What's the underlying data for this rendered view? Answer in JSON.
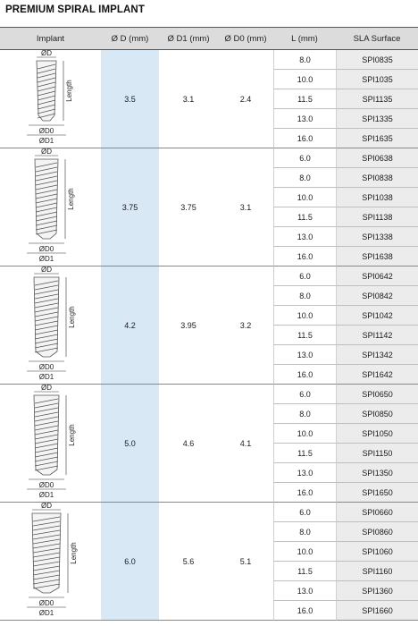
{
  "title": "PREMIUM SPIRAL IMPLANT",
  "headers": [
    "Implant",
    "Ø D (mm)",
    "Ø D1 (mm)",
    "Ø D0 (mm)",
    "L (mm)",
    "SLA Surface"
  ],
  "diagram_labels": {
    "d": "ØD",
    "d0": "ØD0",
    "d1": "ØD1",
    "length": "Length"
  },
  "groups": [
    {
      "d": "3.5",
      "d1": "3.1",
      "d0": "2.4",
      "rows": [
        {
          "l": "8.0",
          "code": "SPI0835"
        },
        {
          "l": "10.0",
          "code": "SPI1035"
        },
        {
          "l": "11.5",
          "code": "SPI1135"
        },
        {
          "l": "13.0",
          "code": "SPI1335"
        },
        {
          "l": "16.0",
          "code": "SPI1635"
        }
      ]
    },
    {
      "d": "3.75",
      "d1": "3.75",
      "d0": "3.1",
      "rows": [
        {
          "l": "6.0",
          "code": "SPI0638"
        },
        {
          "l": "8.0",
          "code": "SPI0838"
        },
        {
          "l": "10.0",
          "code": "SPI1038"
        },
        {
          "l": "11.5",
          "code": "SPI1138"
        },
        {
          "l": "13.0",
          "code": "SPI1338"
        },
        {
          "l": "16.0",
          "code": "SPI1638"
        }
      ]
    },
    {
      "d": "4.2",
      "d1": "3.95",
      "d0": "3.2",
      "rows": [
        {
          "l": "6.0",
          "code": "SPI0642"
        },
        {
          "l": "8.0",
          "code": "SPI0842"
        },
        {
          "l": "10.0",
          "code": "SPI1042"
        },
        {
          "l": "11.5",
          "code": "SPI1142"
        },
        {
          "l": "13.0",
          "code": "SPI1342"
        },
        {
          "l": "16.0",
          "code": "SPI1642"
        }
      ]
    },
    {
      "d": "5.0",
      "d1": "4.6",
      "d0": "4.1",
      "rows": [
        {
          "l": "6.0",
          "code": "SPI0650"
        },
        {
          "l": "8.0",
          "code": "SPI0850"
        },
        {
          "l": "10.0",
          "code": "SPI1050"
        },
        {
          "l": "11.5",
          "code": "SPI1150"
        },
        {
          "l": "13.0",
          "code": "SPI1350"
        },
        {
          "l": "16.0",
          "code": "SPI1650"
        }
      ]
    },
    {
      "d": "6.0",
      "d1": "5.6",
      "d0": "5.1",
      "rows": [
        {
          "l": "6.0",
          "code": "SPI0660"
        },
        {
          "l": "8.0",
          "code": "SPI0860"
        },
        {
          "l": "10.0",
          "code": "SPI1060"
        },
        {
          "l": "11.5",
          "code": "SPI1160"
        },
        {
          "l": "13.0",
          "code": "SPI1360"
        },
        {
          "l": "16.0",
          "code": "SPI1660"
        }
      ]
    }
  ]
}
